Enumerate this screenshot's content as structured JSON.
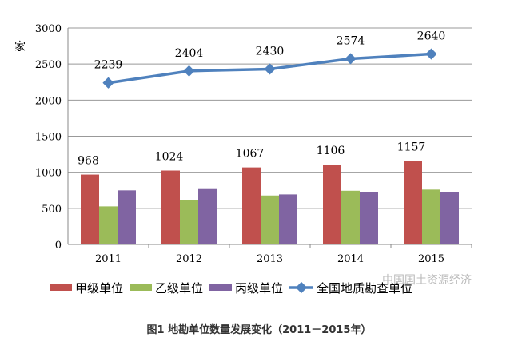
{
  "chart_data": {
    "type": "bar",
    "title": "图1  地勘单位数量发展变化（2011－2015年）",
    "ylabel": "家",
    "xlabel": "",
    "ylim": [
      0,
      3000
    ],
    "yticks": [
      0,
      500,
      1000,
      1500,
      2000,
      2500,
      3000
    ],
    "categories": [
      "2011",
      "2012",
      "2013",
      "2014",
      "2015"
    ],
    "series": [
      {
        "name": "甲级单位",
        "type": "bar",
        "color": "#c0504d",
        "values": [
          968,
          1024,
          1067,
          1106,
          1157
        ],
        "labels": [
          "968",
          "1024",
          "1067",
          "1106",
          "1157"
        ]
      },
      {
        "name": "乙级单位",
        "type": "bar",
        "color": "#9bbb59",
        "values": [
          527,
          615,
          678,
          744,
          760
        ]
      },
      {
        "name": "丙级单位",
        "type": "bar",
        "color": "#8064a2",
        "values": [
          749,
          767,
          693,
          727,
          730
        ]
      },
      {
        "name": "全国地质勘查单位",
        "type": "line",
        "color": "#4f81bd",
        "values": [
          2239,
          2404,
          2430,
          2574,
          2640
        ],
        "labels": [
          "2239",
          "2404",
          "2430",
          "2574",
          "2640"
        ]
      }
    ],
    "grid": true,
    "legend": "bottom"
  },
  "watermark": "中国国土资源经济"
}
